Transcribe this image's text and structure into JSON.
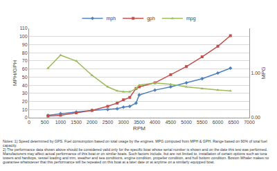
{
  "chart_data": {
    "type": "line",
    "x_label": "RPM",
    "y_label": "MPH/GPH",
    "y2_label": "MPG",
    "x": [
      600,
      1000,
      1500,
      2000,
      2500,
      2800,
      3000,
      3200,
      3400,
      3500,
      4000,
      4500,
      5000,
      5500,
      6000,
      6400
    ],
    "series": [
      {
        "name": "mph",
        "color": "#4f81bd",
        "marker": "diamond",
        "line_style": "solid",
        "values": [
          3,
          5,
          7,
          9,
          10,
          11,
          13,
          14,
          18,
          28,
          34,
          38,
          43,
          48,
          55,
          61
        ]
      },
      {
        "name": "gph",
        "color": "#c0504d",
        "marker": "square",
        "line_style": "solid",
        "values": [
          2,
          3,
          6,
          9,
          14,
          18,
          22,
          25,
          36,
          38,
          43,
          53,
          63,
          75,
          88,
          101
        ]
      },
      {
        "name": "mpg",
        "color": "#9bbb59",
        "marker": "triangle",
        "line_style": "solid",
        "axis": "y2",
        "values": [
          1.11,
          1.4,
          1.27,
          0.95,
          0.69,
          0.6,
          0.58,
          0.58,
          0.65,
          0.73,
          0.78,
          0.75,
          0.69,
          0.65,
          0.62,
          0.6
        ]
      }
    ],
    "xlim": [
      0,
      7000
    ],
    "xticks": [
      0,
      500,
      1000,
      1500,
      2000,
      2500,
      3000,
      3500,
      4000,
      4500,
      5000,
      5500,
      6000,
      6500,
      7000
    ],
    "ylim": [
      0,
      110
    ],
    "yticks": [
      0,
      10,
      20,
      30,
      40,
      50,
      60,
      70,
      80,
      90,
      100,
      110
    ],
    "y2lim": [
      0,
      2
    ],
    "y2ticks": [
      {
        "value": 0,
        "label": "0.00"
      },
      {
        "value": 1,
        "label": "1.00"
      }
    ],
    "grid": true,
    "legend": "top",
    "notes": [
      "Notes: 1) Speed determined by GPS. Fuel consumption based on total usage by the engines. MPG computed from MPH & GPH. Range based on 90% of total fuel capacity.",
      "2) The performance data shown above should be considered valid only for the specific boat whose serial number is shown and on the date this test was performed. Manufacturers may affect actual performance of this boat or on similar boats. Such factors include, but are not limited to, installation of certain options such as tuna towers and hardtops, vessel loading and trim, weather and sea conditions, engine condition, propeller condition, and hull bottom condition. Boston Whaler makes no guarantee whatsoever that this performance will be repeated on this boat at a later date or at anytime on a similarly equipped boat."
    ]
  }
}
